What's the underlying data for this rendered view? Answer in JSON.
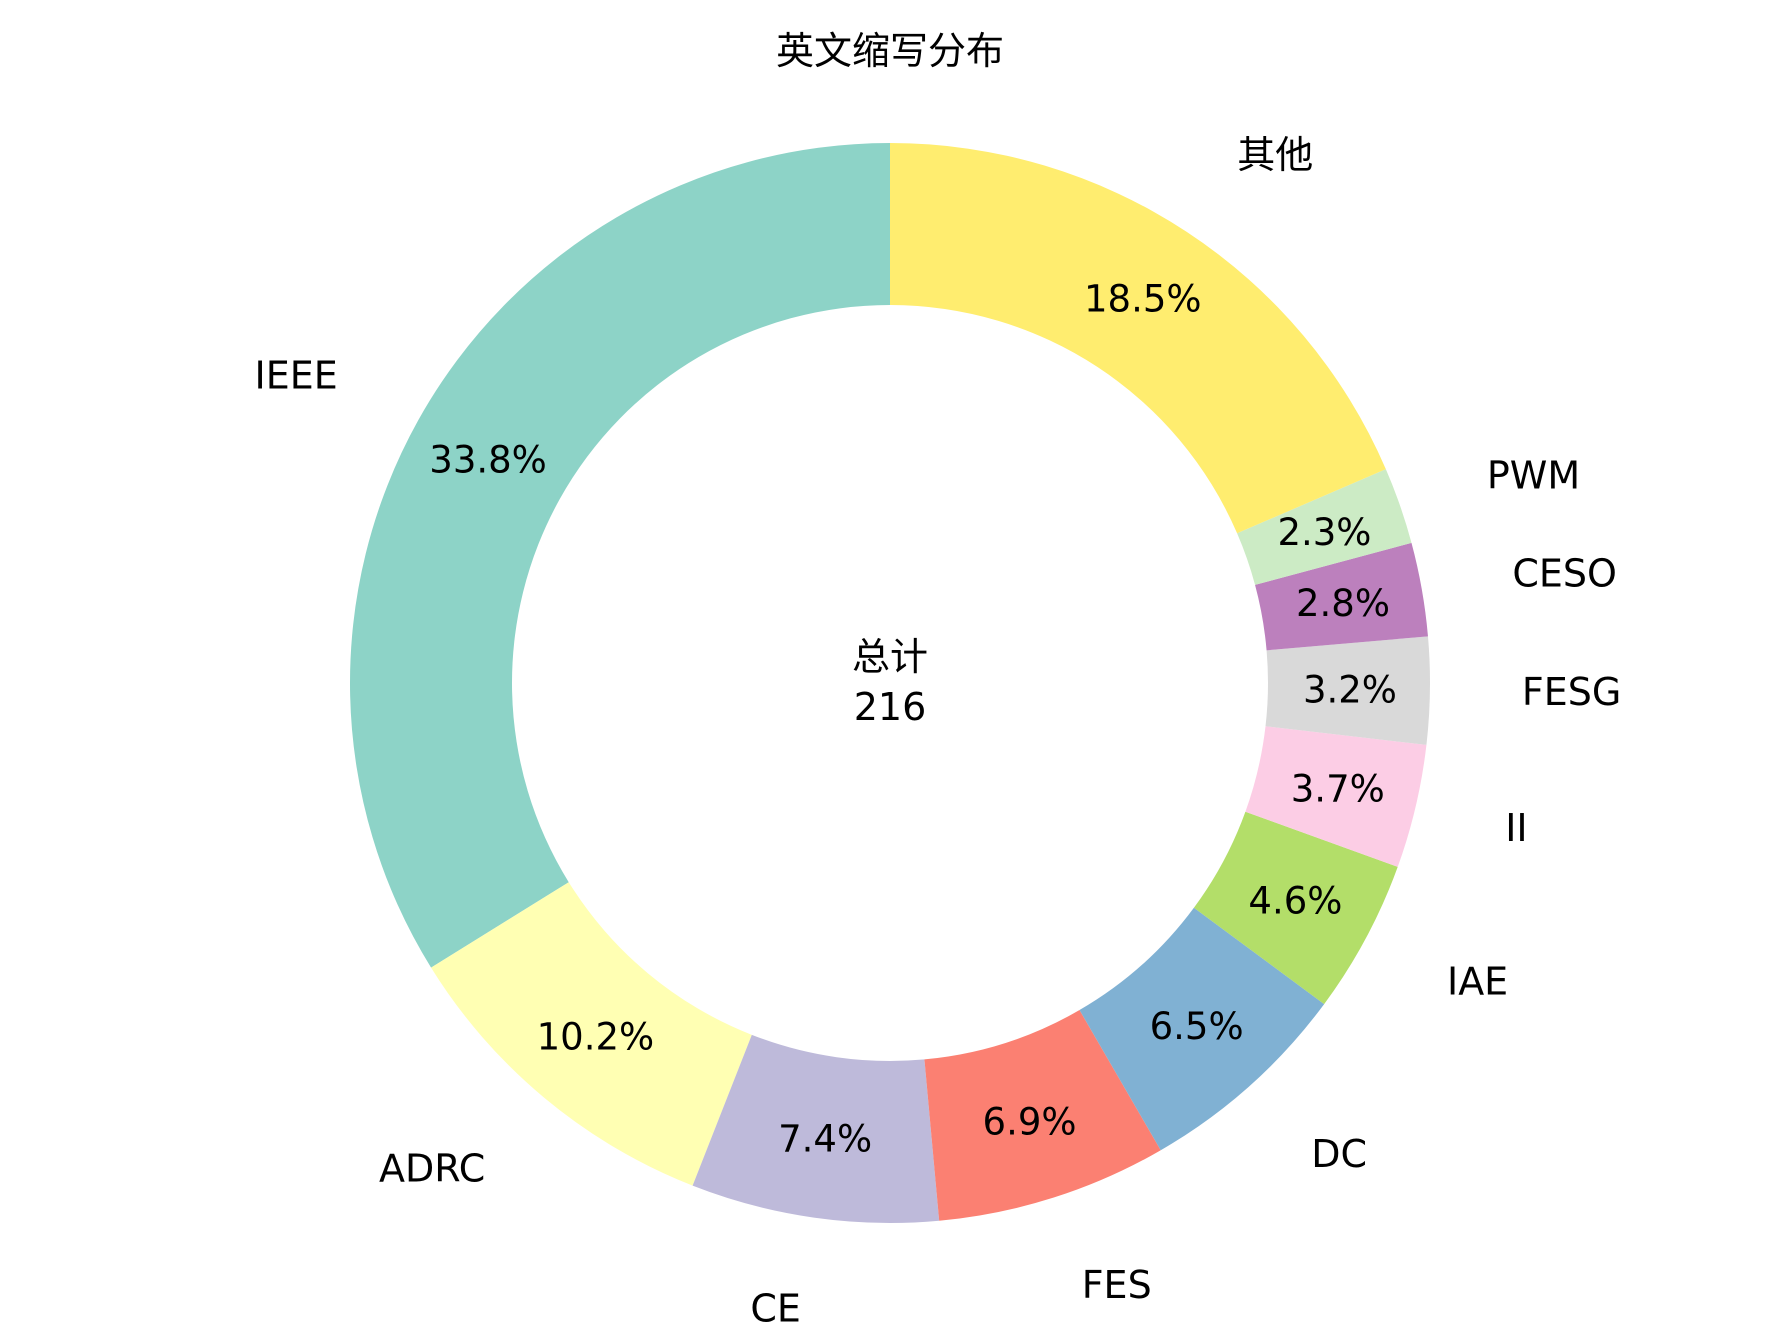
{
  "chart_data": {
    "type": "pie",
    "variant": "donut",
    "title": "英文缩写分布",
    "center_label": "总计",
    "center_value": "216",
    "start_angle_deg": 90,
    "direction": "counterclockwise",
    "slices": [
      {
        "label": "IEEE",
        "percent": 33.8,
        "percent_label": "33.8%",
        "color": "#8dd3c7"
      },
      {
        "label": "ADRC",
        "percent": 10.2,
        "percent_label": "10.2%",
        "color": "#ffffb3"
      },
      {
        "label": "CE",
        "percent": 7.4,
        "percent_label": "7.4%",
        "color": "#bebada"
      },
      {
        "label": "FES",
        "percent": 6.9,
        "percent_label": "6.9%",
        "color": "#fb8072"
      },
      {
        "label": "DC",
        "percent": 6.5,
        "percent_label": "6.5%",
        "color": "#80b1d3"
      },
      {
        "label": "IAE",
        "percent": 4.6,
        "percent_label": "4.6%",
        "color": "#b3de69"
      },
      {
        "label": "II",
        "percent": 3.7,
        "percent_label": "3.7%",
        "color": "#fccde5"
      },
      {
        "label": "FESG",
        "percent": 3.2,
        "percent_label": "3.2%",
        "color": "#d9d9d9"
      },
      {
        "label": "CESO",
        "percent": 2.8,
        "percent_label": "2.8%",
        "color": "#bc80bd"
      },
      {
        "label": "PWM",
        "percent": 2.3,
        "percent_label": "2.3%",
        "color": "#ccebc5"
      },
      {
        "label": "其他",
        "percent": 18.5,
        "percent_label": "18.5%",
        "color": "#ffed6f"
      }
    ]
  }
}
